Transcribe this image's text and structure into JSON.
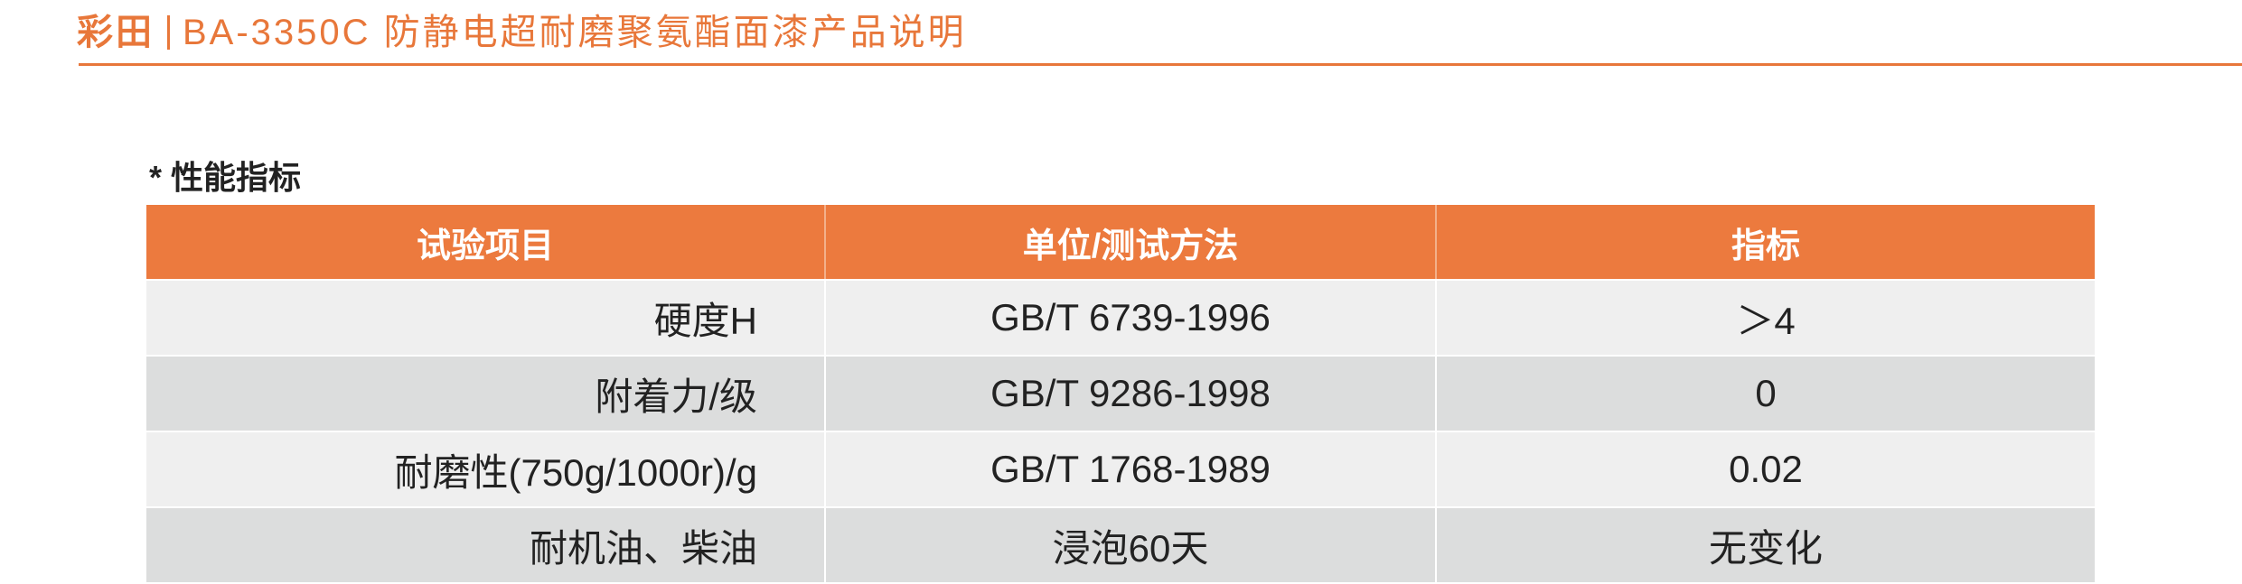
{
  "header": {
    "brand": "彩田",
    "title": "BA-3350C 防静电超耐磨聚氨酯面漆产品说明",
    "accent_color": "#e8773a"
  },
  "section": {
    "title": "* 性能指标"
  },
  "table": {
    "columns": [
      "试验项目",
      "单位/测试方法",
      "指标"
    ],
    "rows": [
      [
        "硬度H",
        "GB/T 6739-1996",
        "＞4"
      ],
      [
        "附着力/级",
        "GB/T 9286-1998",
        "0"
      ],
      [
        "耐磨性(750g/1000r)/g",
        "GB/T 1768-1989",
        "0.02"
      ],
      [
        "耐机油、柴油",
        "浸泡60天",
        "无变化"
      ]
    ],
    "header_color": "#ec7a3e",
    "row_colors": [
      "#efefef",
      "#dcdddd"
    ]
  }
}
